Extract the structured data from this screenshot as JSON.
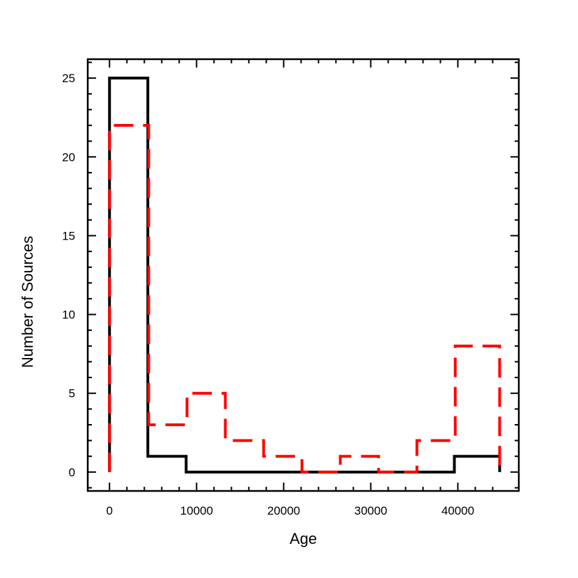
{
  "chart_data": {
    "type": "histogram",
    "xlabel": "Age",
    "ylabel": "Number of Sources",
    "xlim": [
      -2500,
      47000
    ],
    "ylim": [
      -1.2,
      26.2
    ],
    "x_ticks": [
      0,
      10000,
      20000,
      30000,
      40000
    ],
    "y_ticks": [
      0,
      5,
      10,
      15,
      20,
      25
    ],
    "x_tick_labels": [
      "0",
      "10000",
      "20000",
      "30000",
      "40000"
    ],
    "y_tick_labels": [
      "0",
      "5",
      "10",
      "15",
      "20",
      "25"
    ],
    "grid": false,
    "legend": "none",
    "series": [
      {
        "color": "#000000",
        "line_style": "solid",
        "bin_edges": [
          0,
          4400,
          8800,
          13200,
          17600,
          22000,
          26400,
          30800,
          35200,
          39600,
          44800
        ],
        "values": [
          25,
          1,
          0,
          0,
          0,
          0,
          0,
          0,
          0,
          1
        ]
      },
      {
        "color": "#ff0000",
        "line_style": "dashed",
        "bin_edges": [
          0,
          4500,
          8900,
          13300,
          17700,
          22100,
          26500,
          30900,
          35300,
          39700,
          44800
        ],
        "values": [
          22,
          3,
          5,
          2,
          1,
          0,
          1,
          0,
          2,
          8
        ]
      }
    ]
  }
}
